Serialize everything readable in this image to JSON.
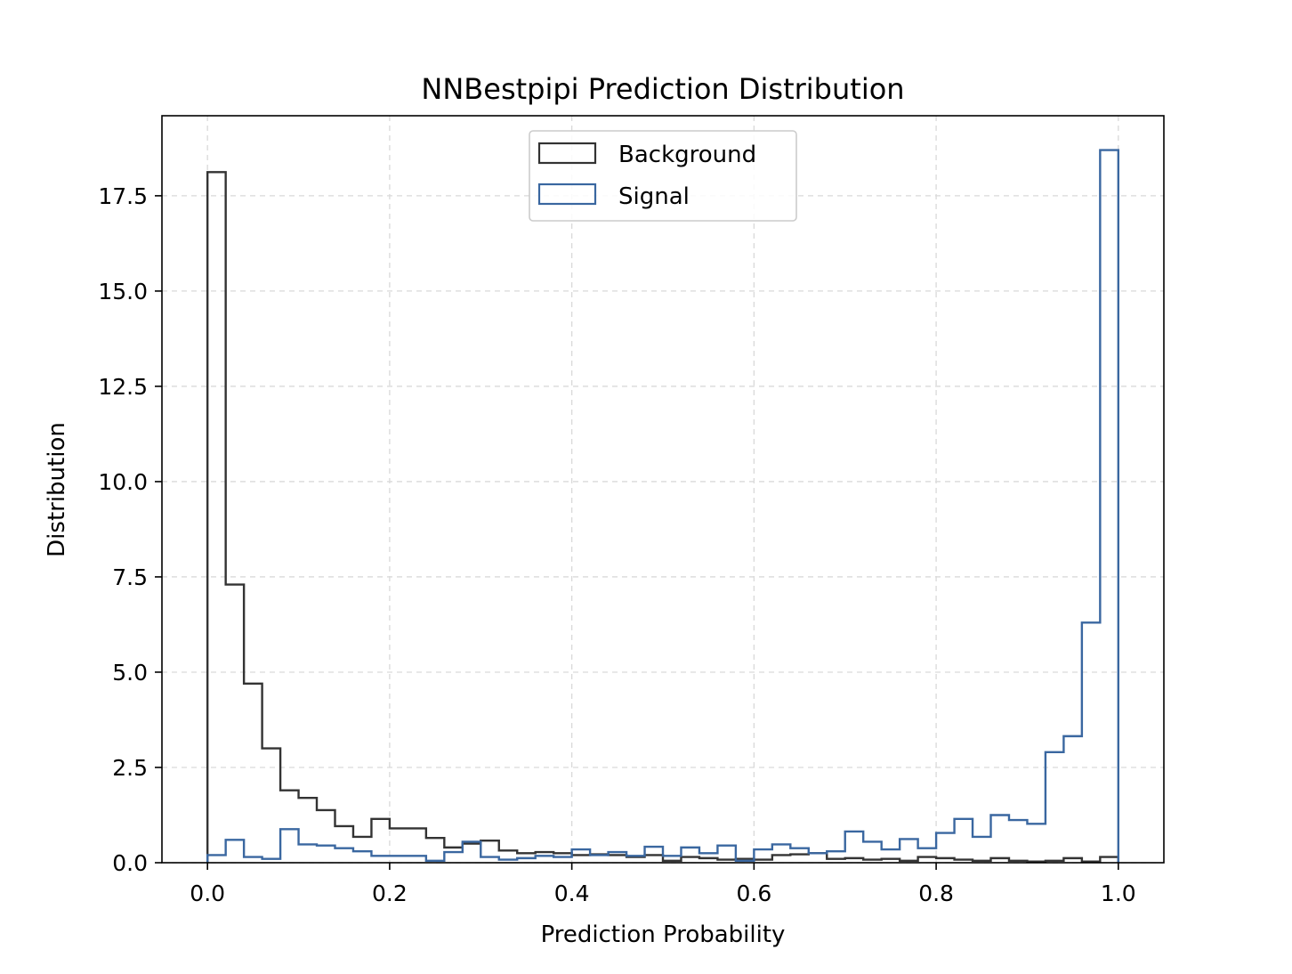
{
  "chart_data": {
    "type": "histogram-step",
    "title": "NNBestpipi Prediction Distribution",
    "xlabel": "Prediction Probability",
    "ylabel": "Distribution",
    "xlim": [
      -0.05,
      1.05
    ],
    "ylim": [
      0,
      19.6
    ],
    "xticks": [
      0.0,
      0.2,
      0.4,
      0.6,
      0.8,
      1.0
    ],
    "xtick_labels": [
      "0.0",
      "0.2",
      "0.4",
      "0.6",
      "0.8",
      "1.0"
    ],
    "yticks": [
      0.0,
      2.5,
      5.0,
      7.5,
      10.0,
      12.5,
      15.0,
      17.5
    ],
    "ytick_labels": [
      "0.0",
      "2.5",
      "5.0",
      "7.5",
      "10.0",
      "12.5",
      "15.0",
      "17.5"
    ],
    "grid": true,
    "legend_position": "upper center",
    "bin_edges": [
      0.0,
      0.02,
      0.04,
      0.06,
      0.08,
      0.1,
      0.12,
      0.14,
      0.16,
      0.18,
      0.2,
      0.22,
      0.24,
      0.26,
      0.28,
      0.3,
      0.32,
      0.34,
      0.36,
      0.38,
      0.4,
      0.42,
      0.44,
      0.46,
      0.48,
      0.5,
      0.52,
      0.54,
      0.56,
      0.58,
      0.6,
      0.62,
      0.64,
      0.66,
      0.68,
      0.7,
      0.72,
      0.74,
      0.76,
      0.78,
      0.8,
      0.82,
      0.84,
      0.86,
      0.88,
      0.9,
      0.92,
      0.94,
      0.96,
      0.98,
      1.0
    ],
    "series": [
      {
        "name": "Background",
        "color": "#333333",
        "values": [
          18.12,
          7.3,
          4.7,
          3.0,
          1.9,
          1.7,
          1.38,
          0.96,
          0.68,
          1.15,
          0.9,
          0.9,
          0.65,
          0.4,
          0.5,
          0.58,
          0.32,
          0.25,
          0.28,
          0.25,
          0.2,
          0.22,
          0.2,
          0.15,
          0.2,
          0.05,
          0.15,
          0.12,
          0.08,
          0.1,
          0.08,
          0.2,
          0.22,
          0.25,
          0.1,
          0.12,
          0.08,
          0.1,
          0.05,
          0.15,
          0.12,
          0.08,
          0.05,
          0.12,
          0.05,
          0.03,
          0.05,
          0.12,
          0.03,
          0.15
        ]
      },
      {
        "name": "Signal",
        "color": "#3a67a0",
        "values": [
          0.2,
          0.6,
          0.15,
          0.1,
          0.88,
          0.48,
          0.45,
          0.38,
          0.3,
          0.18,
          0.18,
          0.18,
          0.05,
          0.28,
          0.55,
          0.15,
          0.08,
          0.12,
          0.18,
          0.15,
          0.35,
          0.2,
          0.28,
          0.18,
          0.42,
          0.18,
          0.4,
          0.25,
          0.45,
          0.05,
          0.35,
          0.48,
          0.38,
          0.25,
          0.3,
          0.82,
          0.55,
          0.35,
          0.62,
          0.38,
          0.78,
          1.15,
          0.68,
          1.25,
          1.12,
          1.02,
          2.9,
          3.32,
          6.3,
          18.7
        ]
      }
    ]
  }
}
